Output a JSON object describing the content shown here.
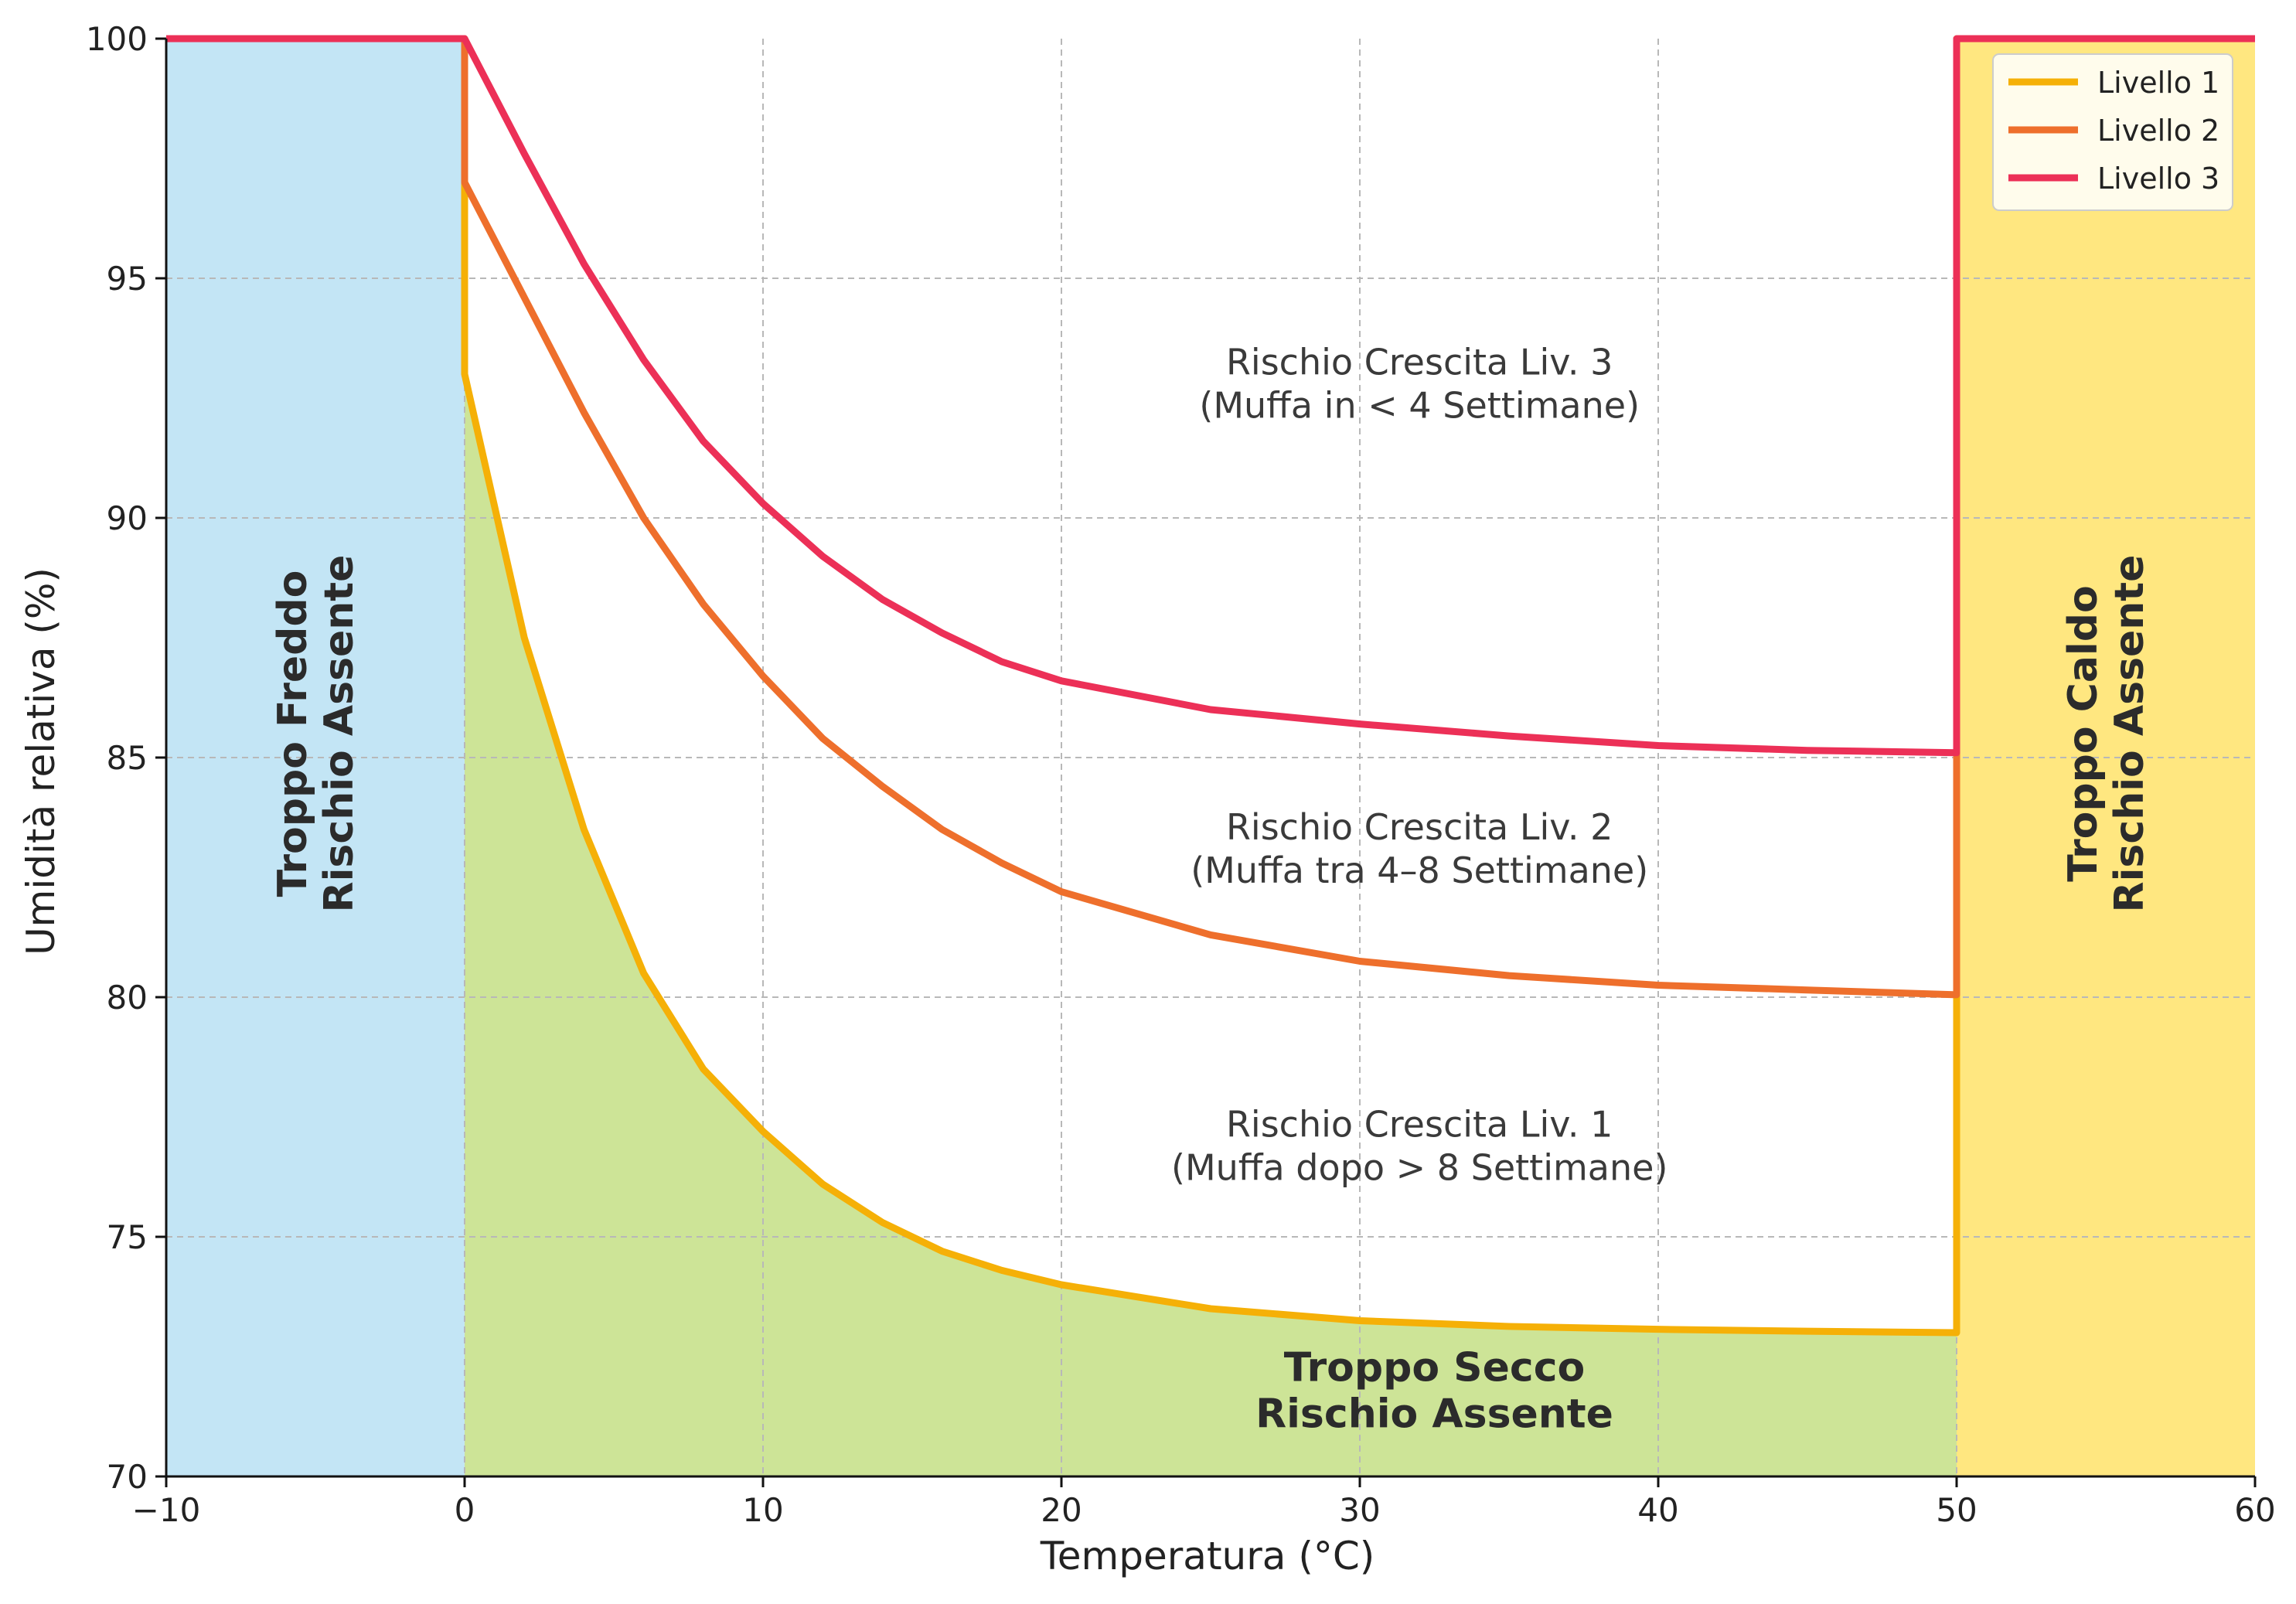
{
  "chart_data": {
    "type": "line",
    "title": "",
    "xlabel": "Temperatura (°C)",
    "ylabel": "Umidità relativa (%)",
    "xlim": [
      -10,
      60
    ],
    "ylim": [
      70,
      100
    ],
    "x_ticks": [
      -10,
      0,
      10,
      20,
      30,
      40,
      50,
      60
    ],
    "x_tick_labels": [
      "−10",
      "0",
      "10",
      "20",
      "30",
      "40",
      "50",
      "60"
    ],
    "y_ticks": [
      70,
      75,
      80,
      85,
      90,
      95,
      100
    ],
    "y_tick_labels": [
      "70",
      "75",
      "80",
      "85",
      "90",
      "95",
      "100"
    ],
    "grid": true,
    "legend_position": "top-right",
    "series": [
      {
        "name": "Livello 1",
        "color": "#f5b007",
        "x": [
          -10,
          0,
          0,
          2,
          4,
          6,
          8,
          10,
          12,
          14,
          16,
          18,
          20,
          25,
          30,
          35,
          40,
          45,
          50,
          50,
          60
        ],
        "y": [
          100,
          100,
          93,
          87.5,
          83.5,
          80.5,
          78.5,
          77.2,
          76.1,
          75.3,
          74.7,
          74.3,
          74.0,
          73.5,
          73.25,
          73.13,
          73.07,
          73.03,
          73.0,
          100,
          100
        ]
      },
      {
        "name": "Livello 2",
        "color": "#ee6f2c",
        "x": [
          0,
          0,
          2,
          4,
          6,
          8,
          10,
          12,
          14,
          16,
          18,
          20,
          25,
          30,
          35,
          40,
          45,
          50,
          50
        ],
        "y": [
          100,
          97,
          94.6,
          92.2,
          90.0,
          88.2,
          86.7,
          85.4,
          84.4,
          83.5,
          82.8,
          82.2,
          81.3,
          80.75,
          80.45,
          80.25,
          80.15,
          80.05,
          100
        ]
      },
      {
        "name": "Livello 3",
        "color": "#ec3057",
        "x": [
          -10,
          0,
          2,
          4,
          6,
          8,
          10,
          12,
          14,
          16,
          18,
          20,
          25,
          30,
          35,
          40,
          45,
          50,
          50,
          60
        ],
        "y": [
          100,
          100,
          97.6,
          95.3,
          93.3,
          91.6,
          90.3,
          89.2,
          88.3,
          87.6,
          87.0,
          86.6,
          86.0,
          85.7,
          85.45,
          85.25,
          85.15,
          85.1,
          100,
          100
        ]
      }
    ],
    "regions": [
      {
        "name": "Troppo Freddo",
        "color": "#c3e5f5",
        "x_range": [
          -10,
          0
        ]
      },
      {
        "name": "Troppo Caldo",
        "color": "#ffe780",
        "x_range": [
          50,
          60
        ]
      },
      {
        "name": "Troppo Secco",
        "color": "#cde497",
        "below_series": "Livello 1",
        "x_range": [
          0,
          50
        ]
      }
    ],
    "annotations": [
      {
        "id": "freddo",
        "lines": [
          "Troppo Freddo",
          "Rischio Assente"
        ],
        "x": -5,
        "y": 85.5,
        "rotation": -90,
        "bold": true
      },
      {
        "id": "caldo",
        "lines": [
          "Troppo Caldo",
          "Rischio Assente"
        ],
        "x": 55,
        "y": 85.5,
        "rotation": -90,
        "bold": true
      },
      {
        "id": "secco",
        "lines": [
          "Troppo Secco",
          "Rischio Assente"
        ],
        "x": 32.5,
        "y": 71.8,
        "rotation": 0,
        "bold": true
      },
      {
        "id": "liv3",
        "lines": [
          "Rischio Crescita Liv. 3",
          "(Muffa in < 4 Settimane)"
        ],
        "x": 32,
        "y": 92.8,
        "rotation": 0,
        "bold": false
      },
      {
        "id": "liv2",
        "lines": [
          "Rischio Crescita Liv. 2",
          "(Muffa tra 4–8 Settimane)"
        ],
        "x": 32,
        "y": 83.1,
        "rotation": 0,
        "bold": false
      },
      {
        "id": "liv1",
        "lines": [
          "Rischio Crescita Liv. 1",
          "(Muffa dopo > 8 Settimane)"
        ],
        "x": 32,
        "y": 76.9,
        "rotation": 0,
        "bold": false
      }
    ]
  }
}
